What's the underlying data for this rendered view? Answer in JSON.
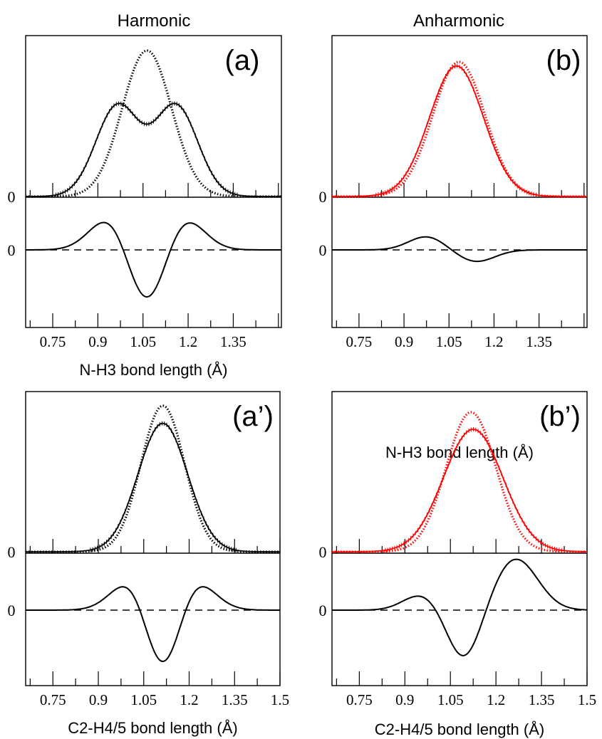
{
  "column_titles": {
    "left": "Harmonic",
    "right": "Anharmonic"
  },
  "chart_data": [
    {
      "type": "line",
      "panel_label": "(a)",
      "xlabel": "N-H3 bond length (Å)",
      "xlim": [
        0.66,
        1.51
      ],
      "xticks": [
        "0.75",
        "0.9",
        "1.05",
        "1.2",
        "1.35"
      ],
      "top_zero_label": "0",
      "bottom_zero_label": "0",
      "top": {
        "series": [
          {
            "style": "solid",
            "color": "#000000",
            "curve": {
              "type": "gaussian_sum",
              "components": [
                {
                  "amp": 0.62,
                  "mu": 0.965,
                  "sigma": 0.072
                },
                {
                  "amp": 0.62,
                  "mu": 1.16,
                  "sigma": 0.072
                }
              ]
            }
          },
          {
            "style": "dotted",
            "color": "#000000",
            "curve": {
              "type": "gaussian_sum",
              "components": [
                {
                  "amp": 1.0,
                  "mu": 1.063,
                  "sigma": 0.082
                }
              ]
            }
          }
        ]
      },
      "bottom": {
        "series": [
          {
            "style": "solid",
            "color": "#000000",
            "curve": {
              "type": "difference",
              "a": "top.series.0",
              "b": "top.series.1",
              "scale": 1.0
            }
          },
          {
            "style": "dashed",
            "color": "#000000",
            "curve": {
              "type": "zero"
            }
          }
        ]
      }
    },
    {
      "type": "line",
      "panel_label": "(b)",
      "xlabel": "N-H3 bond length (Å)",
      "xlim": [
        0.66,
        1.51
      ],
      "xticks": [
        "0.75",
        "0.9",
        "1.05",
        "1.2",
        "1.35"
      ],
      "top_zero_label": "0",
      "bottom_zero_label": "0",
      "top": {
        "series": [
          {
            "style": "solid",
            "color": "#ff0000",
            "curve": {
              "type": "gaussian_sum",
              "components": [
                {
                  "amp": 0.94,
                  "mu": 1.075,
                  "sigma": 0.09
                }
              ]
            }
          },
          {
            "style": "dotted",
            "color": "#ff0000",
            "curve": {
              "type": "gaussian_sum",
              "components": [
                {
                  "amp": 0.97,
                  "mu": 1.083,
                  "sigma": 0.087
                }
              ]
            }
          }
        ]
      },
      "bottom": {
        "series": [
          {
            "style": "solid",
            "color": "#000000",
            "curve": {
              "type": "gaussian_sum",
              "components": [
                {
                  "amp": 0.085,
                  "mu": 0.975,
                  "sigma": 0.06
                },
                {
                  "amp": -0.075,
                  "mu": 1.14,
                  "sigma": 0.062
                }
              ]
            }
          },
          {
            "style": "dashed",
            "color": "#000000",
            "curve": {
              "type": "zero"
            }
          }
        ]
      }
    },
    {
      "type": "line",
      "panel_label": "(a’)",
      "xlabel": "C2-H4/5 bond length (Å)",
      "xlim": [
        0.66,
        1.5
      ],
      "xticks": [
        "0.75",
        "0.9",
        "1.05",
        "1.2",
        "1.35",
        "1.5"
      ],
      "top_zero_label": "0",
      "bottom_zero_label": "0",
      "top": {
        "series": [
          {
            "style": "solid",
            "color": "#000000",
            "curve": {
              "type": "gaussian_sum",
              "components": [
                {
                  "amp": 0.88,
                  "mu": 1.113,
                  "sigma": 0.082
                }
              ]
            }
          },
          {
            "style": "dotted",
            "color": "#000000",
            "curve": {
              "type": "gaussian_sum",
              "components": [
                {
                  "amp": 1.0,
                  "mu": 1.113,
                  "sigma": 0.072
                }
              ]
            }
          }
        ]
      },
      "bottom": {
        "series": [
          {
            "style": "solid",
            "color": "#000000",
            "curve": {
              "type": "difference",
              "a": "top.series.0",
              "b": "top.series.1",
              "scale": 1.0
            }
          },
          {
            "style": "dashed",
            "color": "#000000",
            "curve": {
              "type": "zero"
            }
          }
        ]
      }
    },
    {
      "type": "line",
      "panel_label": "(b’)",
      "xlabel": "C2-H4/5 bond length (Å)",
      "xlim": [
        0.66,
        1.5
      ],
      "xticks": [
        "0.75",
        "0.9",
        "1.05",
        "1.2",
        "1.35",
        "1.5"
      ],
      "top_zero_label": "0",
      "bottom_zero_label": "0",
      "top": {
        "series": [
          {
            "style": "solid",
            "color": "#ff0000",
            "curve": {
              "type": "gaussian_sum",
              "components": [
                {
                  "amp": 0.86,
                  "mu": 1.125,
                  "sigma": 0.098
                }
              ]
            }
          },
          {
            "style": "dotted",
            "color": "#ff0000",
            "curve": {
              "type": "gaussian_sum",
              "components": [
                {
                  "amp": 0.98,
                  "mu": 1.118,
                  "sigma": 0.082
                }
              ]
            }
          }
        ]
      },
      "bottom": {
        "series": [
          {
            "style": "solid",
            "color": "#000000",
            "curve": {
              "type": "gaussian_sum",
              "components": [
                {
                  "amp": 0.09,
                  "mu": 0.955,
                  "sigma": 0.06
                },
                {
                  "amp": -0.29,
                  "mu": 1.095,
                  "sigma": 0.055
                },
                {
                  "amp": 0.3,
                  "mu": 1.265,
                  "sigma": 0.072
                }
              ]
            }
          },
          {
            "style": "dashed",
            "color": "#000000",
            "curve": {
              "type": "zero"
            }
          }
        ]
      }
    }
  ]
}
